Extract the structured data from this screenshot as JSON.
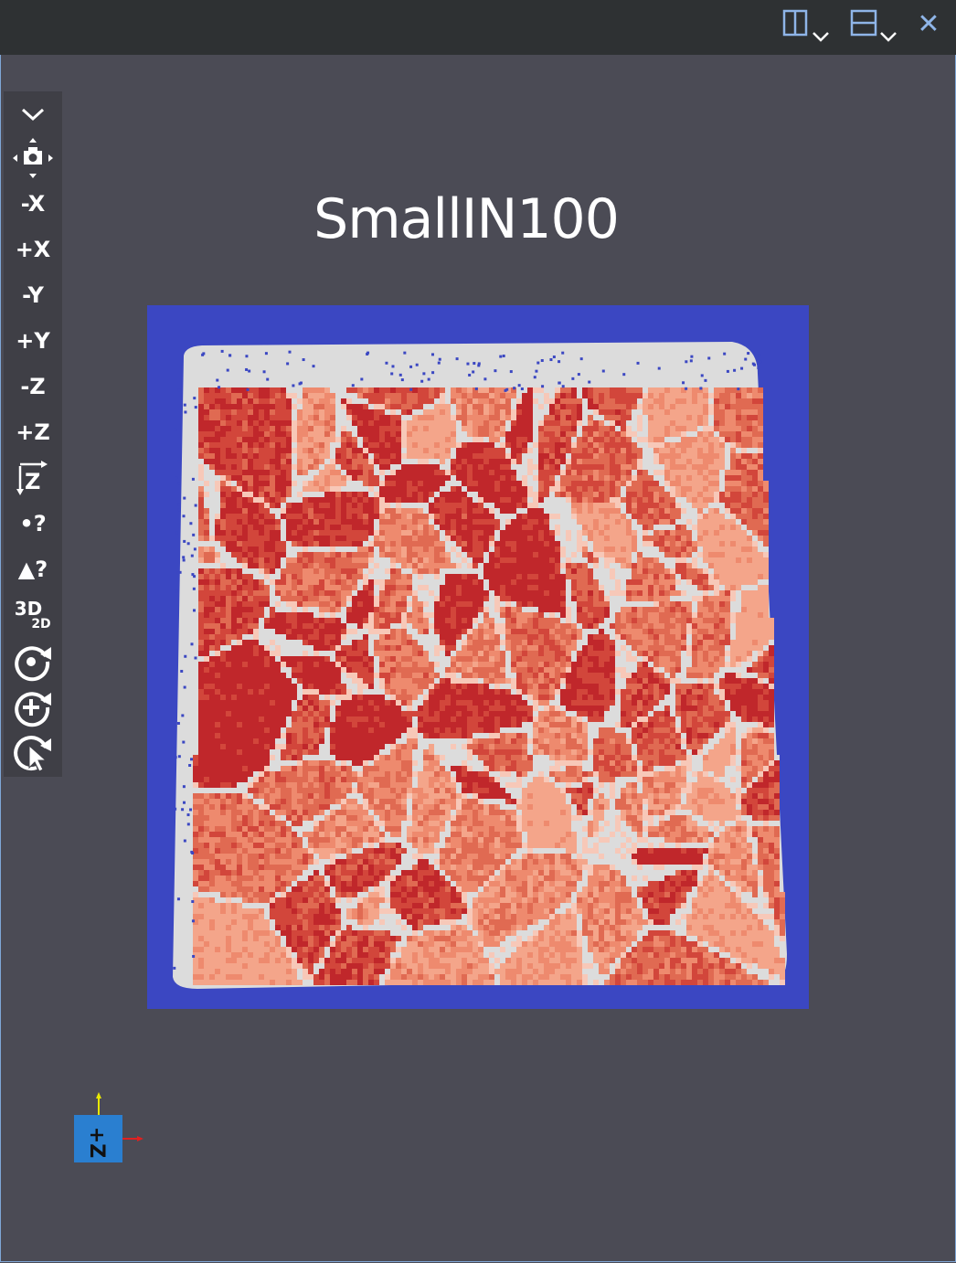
{
  "window": {
    "split_horizontal_icon": "split-horizontal-icon",
    "split_vertical_icon": "split-vertical-icon",
    "close_label": "✕"
  },
  "toolbar": {
    "items": [
      {
        "label": "⌄",
        "icon": "chevron-down-icon"
      },
      {
        "label": "",
        "icon": "camera-icon"
      },
      {
        "label": "-X"
      },
      {
        "label": "+X"
      },
      {
        "label": "-Y"
      },
      {
        "label": "+Y"
      },
      {
        "label": "-Z"
      },
      {
        "label": "+Z"
      },
      {
        "label": "Z",
        "icon": "rotate-axis-icon"
      },
      {
        "label": "•?",
        "icon": "point-info-icon"
      },
      {
        "label": "▲?",
        "icon": "cell-info-icon"
      },
      {
        "label": "3D",
        "sub": "2D"
      },
      {
        "label": "",
        "icon": "reset-camera-icon"
      },
      {
        "label": "",
        "icon": "zoom-to-data-icon"
      },
      {
        "label": "",
        "icon": "interactive-select-icon"
      }
    ]
  },
  "view": {
    "title": "SmallIN100",
    "colors": {
      "background": "#4b4b55",
      "low": "#3b47c2",
      "boundary": "#dcdcdc",
      "grain_light": "#f4a58a",
      "grain_mid": "#e06a52",
      "grain_dark": "#c0272b"
    }
  },
  "axes_widget": {
    "label": "+Z",
    "x_color": "#e02020",
    "y_color": "#e8e800",
    "z_color": "#2a7fd0"
  }
}
